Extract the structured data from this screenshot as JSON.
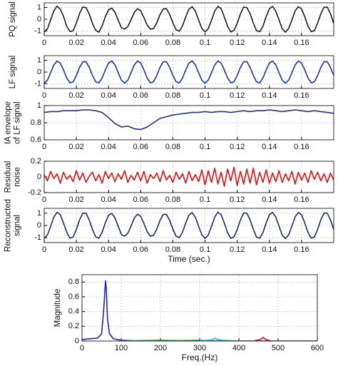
{
  "chart_data": [
    {
      "type": "line",
      "ylabel": "PQ signal",
      "xlim": [
        0,
        0.18
      ],
      "ylim": [
        -1.4,
        1.4
      ],
      "xticks": [
        0,
        0.02,
        0.04,
        0.06,
        0.08,
        0.1,
        0.12,
        0.14,
        0.16
      ],
      "yticks": [
        -1,
        0,
        1
      ],
      "grid": true,
      "x": [
        0,
        0.002,
        0.004,
        0.006,
        0.008,
        0.01,
        0.012,
        0.014,
        0.016,
        0.018,
        0.02,
        0.022,
        0.024,
        0.026,
        0.028,
        0.03,
        0.032,
        0.034,
        0.036,
        0.038,
        0.04,
        0.042,
        0.044,
        0.046,
        0.048,
        0.05,
        0.052,
        0.054,
        0.056,
        0.058,
        0.06,
        0.062,
        0.064,
        0.066,
        0.068,
        0.07,
        0.072,
        0.074,
        0.076,
        0.078,
        0.08,
        0.082,
        0.084,
        0.086,
        0.088,
        0.09,
        0.092,
        0.094,
        0.096,
        0.098,
        0.1,
        0.102,
        0.104,
        0.106,
        0.108,
        0.11,
        0.112,
        0.114,
        0.116,
        0.118,
        0.12,
        0.122,
        0.124,
        0.126,
        0.128,
        0.13,
        0.132,
        0.134,
        0.136,
        0.138,
        0.14,
        0.142,
        0.144,
        0.146,
        0.148,
        0.15,
        0.152,
        0.154,
        0.156,
        0.158,
        0.16,
        0.162,
        0.164,
        0.166,
        0.168,
        0.17,
        0.172,
        0.174,
        0.176,
        0.178,
        0.18
      ],
      "series": [
        {
          "color": "#1a1a1a",
          "values": [
            -1.1,
            -0.82,
            -0.05,
            0.72,
            1.12,
            0.86,
            0.24,
            -0.6,
            -1.05,
            -0.98,
            -0.31,
            0.49,
            1.05,
            0.99,
            0.45,
            -0.36,
            -0.94,
            -1.1,
            -0.57,
            0.23,
            0.8,
            0.95,
            0.6,
            -0.08,
            -0.72,
            -0.85,
            -0.62,
            -0.04,
            0.58,
            0.9,
            0.72,
            0.15,
            -0.5,
            -0.85,
            -0.8,
            -0.3,
            0.4,
            0.88,
            0.9,
            0.42,
            -0.3,
            -0.9,
            -1.02,
            -0.55,
            0.2,
            0.86,
            1.08,
            0.68,
            -0.06,
            -0.78,
            -1.08,
            -0.8,
            -0.09,
            0.69,
            1.1,
            0.9,
            0.19,
            -0.6,
            -1.08,
            -0.95,
            -0.35,
            0.46,
            1.04,
            1.0,
            0.48,
            -0.32,
            -0.97,
            -1.06,
            -0.6,
            0.22,
            0.9,
            1.1,
            0.69,
            -0.05,
            -0.82,
            -1.1,
            -0.78,
            -0.07,
            0.71,
            1.08,
            0.88,
            0.22,
            -0.58,
            -1.06,
            -0.97,
            -0.33,
            0.48,
            1.03,
            1.03,
            0.46,
            -0.35
          ]
        }
      ]
    },
    {
      "type": "line",
      "ylabel": "LF signal",
      "xlim": [
        0,
        0.18
      ],
      "ylim": [
        -1.4,
        1.4
      ],
      "xticks": [
        0,
        0.02,
        0.04,
        0.06,
        0.08,
        0.1,
        0.12,
        0.14,
        0.16
      ],
      "yticks": [
        -1,
        0,
        1
      ],
      "grid": true,
      "x": [
        0,
        0.002,
        0.004,
        0.006,
        0.008,
        0.01,
        0.012,
        0.014,
        0.016,
        0.018,
        0.02,
        0.022,
        0.024,
        0.026,
        0.028,
        0.03,
        0.032,
        0.034,
        0.036,
        0.038,
        0.04,
        0.042,
        0.044,
        0.046,
        0.048,
        0.05,
        0.052,
        0.054,
        0.056,
        0.058,
        0.06,
        0.062,
        0.064,
        0.066,
        0.068,
        0.07,
        0.072,
        0.074,
        0.076,
        0.078,
        0.08,
        0.082,
        0.084,
        0.086,
        0.088,
        0.09,
        0.092,
        0.094,
        0.096,
        0.098,
        0.1,
        0.102,
        0.104,
        0.106,
        0.108,
        0.11,
        0.112,
        0.114,
        0.116,
        0.118,
        0.12,
        0.122,
        0.124,
        0.126,
        0.128,
        0.13,
        0.132,
        0.134,
        0.136,
        0.138,
        0.14,
        0.142,
        0.144,
        0.146,
        0.148,
        0.15,
        0.152,
        0.154,
        0.156,
        0.158,
        0.16,
        0.162,
        0.164,
        0.166,
        0.168,
        0.17,
        0.172,
        0.174,
        0.176,
        0.178,
        0.18
      ],
      "series": [
        {
          "color": "#1f2fb8",
          "values": [
            -0.95,
            -0.69,
            -0.06,
            0.61,
            0.94,
            0.77,
            0.18,
            -0.51,
            -0.92,
            -0.83,
            -0.29,
            0.4,
            0.88,
            0.88,
            0.4,
            -0.29,
            -0.83,
            -0.92,
            -0.51,
            0.18,
            0.77,
            0.94,
            0.61,
            -0.06,
            -0.69,
            -0.95,
            -0.69,
            -0.06,
            0.61,
            0.94,
            0.77,
            0.18,
            -0.51,
            -0.92,
            -0.83,
            -0.29,
            0.4,
            0.88,
            0.88,
            0.4,
            -0.29,
            -0.83,
            -0.92,
            -0.51,
            0.18,
            0.77,
            0.94,
            0.61,
            -0.06,
            -0.69,
            -0.95,
            -0.69,
            -0.06,
            0.61,
            0.94,
            0.77,
            0.18,
            -0.51,
            -0.92,
            -0.83,
            -0.29,
            0.4,
            0.88,
            0.88,
            0.4,
            -0.29,
            -0.83,
            -0.92,
            -0.51,
            0.18,
            0.77,
            0.94,
            0.61,
            -0.06,
            -0.69,
            -0.95,
            -0.69,
            -0.06,
            0.61,
            0.94,
            0.77,
            0.18,
            -0.51,
            -0.92,
            -0.83,
            -0.29,
            0.4,
            0.88,
            0.88,
            0.4,
            -0.29
          ]
        }
      ]
    },
    {
      "type": "line",
      "ylabel": [
        "IA envelope",
        "of LF signal"
      ],
      "xlim": [
        0,
        0.18
      ],
      "ylim": [
        0.6,
        1.0
      ],
      "xticks": [
        0,
        0.02,
        0.04,
        0.06,
        0.08,
        0.1,
        0.12,
        0.14,
        0.16
      ],
      "yticks": [
        0.6,
        0.8,
        1
      ],
      "grid": true,
      "x": [
        0,
        0.004,
        0.008,
        0.012,
        0.016,
        0.02,
        0.024,
        0.028,
        0.032,
        0.036,
        0.04,
        0.044,
        0.048,
        0.052,
        0.056,
        0.06,
        0.064,
        0.068,
        0.072,
        0.076,
        0.08,
        0.084,
        0.088,
        0.092,
        0.096,
        0.1,
        0.104,
        0.108,
        0.112,
        0.116,
        0.12,
        0.124,
        0.128,
        0.132,
        0.136,
        0.14,
        0.144,
        0.148,
        0.152,
        0.156,
        0.16,
        0.164,
        0.168,
        0.172,
        0.176,
        0.18
      ],
      "series": [
        {
          "color": "#1f2f8f",
          "values": [
            0.92,
            0.93,
            0.93,
            0.94,
            0.94,
            0.94,
            0.95,
            0.95,
            0.94,
            0.92,
            0.86,
            0.79,
            0.75,
            0.76,
            0.73,
            0.72,
            0.75,
            0.8,
            0.85,
            0.87,
            0.89,
            0.9,
            0.91,
            0.92,
            0.92,
            0.93,
            0.92,
            0.93,
            0.93,
            0.92,
            0.93,
            0.94,
            0.93,
            0.94,
            0.94,
            0.95,
            0.94,
            0.93,
            0.94,
            0.95,
            0.94,
            0.93,
            0.94,
            0.93,
            0.92,
            0.91
          ]
        }
      ]
    },
    {
      "type": "line",
      "ylabel": [
        "Residual",
        "noise"
      ],
      "xlim": [
        0,
        0.18
      ],
      "ylim": [
        -0.2,
        0.2
      ],
      "xticks": [
        0,
        0.02,
        0.04,
        0.06,
        0.08,
        0.1,
        0.12,
        0.14,
        0.16
      ],
      "yticks": [
        -0.2,
        0,
        0.2
      ],
      "grid": true,
      "x": [
        0,
        0.002,
        0.004,
        0.006,
        0.008,
        0.01,
        0.012,
        0.014,
        0.016,
        0.018,
        0.02,
        0.022,
        0.024,
        0.026,
        0.028,
        0.03,
        0.032,
        0.034,
        0.036,
        0.038,
        0.04,
        0.042,
        0.044,
        0.046,
        0.048,
        0.05,
        0.052,
        0.054,
        0.056,
        0.058,
        0.06,
        0.062,
        0.064,
        0.066,
        0.068,
        0.07,
        0.072,
        0.074,
        0.076,
        0.078,
        0.08,
        0.082,
        0.084,
        0.086,
        0.088,
        0.09,
        0.092,
        0.094,
        0.096,
        0.098,
        0.1,
        0.102,
        0.104,
        0.106,
        0.108,
        0.11,
        0.112,
        0.114,
        0.116,
        0.118,
        0.12,
        0.122,
        0.124,
        0.126,
        0.128,
        0.13,
        0.132,
        0.134,
        0.136,
        0.138,
        0.14,
        0.142,
        0.144,
        0.146,
        0.148,
        0.15,
        0.152,
        0.154,
        0.156,
        0.158,
        0.16,
        0.162,
        0.164,
        0.166,
        0.168,
        0.17,
        0.172,
        0.174,
        0.176,
        0.178,
        0.18
      ],
      "series": [
        {
          "color": "#e01010",
          "values": [
            0.03,
            -0.05,
            0.07,
            -0.02,
            0.04,
            -0.08,
            0.06,
            -0.03,
            0.02,
            -0.06,
            0.08,
            -0.04,
            0.05,
            -0.07,
            0.01,
            0.06,
            -0.05,
            0.03,
            -0.08,
            0.07,
            -0.02,
            0.05,
            -0.06,
            0.04,
            -0.03,
            0.08,
            -0.07,
            0.02,
            -0.04,
            0.06,
            -0.05,
            0.07,
            -0.08,
            0.03,
            -0.02,
            0.05,
            -0.06,
            0.08,
            -0.04,
            0.02,
            -0.07,
            0.06,
            -0.03,
            0.04,
            -0.08,
            0.07,
            -0.05,
            0.03,
            -0.06,
            0.09,
            -0.1,
            0.08,
            -0.07,
            0.11,
            -0.09,
            0.06,
            -0.12,
            0.1,
            -0.05,
            0.12,
            -0.11,
            0.07,
            -0.09,
            0.1,
            -0.08,
            0.11,
            -0.1,
            0.06,
            -0.07,
            0.09,
            -0.08,
            0.05,
            -0.06,
            0.08,
            -0.07,
            0.04,
            -0.05,
            0.07,
            -0.09,
            0.06,
            -0.04,
            0.05,
            -0.07,
            0.08,
            -0.03,
            0.06,
            -0.05,
            0.04,
            -0.07,
            0.05,
            -0.04
          ]
        }
      ]
    },
    {
      "type": "line",
      "ylabel": [
        "Reconstructed",
        "signal"
      ],
      "xlabel": "Time (sec.)",
      "xlim": [
        0,
        0.18
      ],
      "ylim": [
        -1.4,
        1.4
      ],
      "xticks": [
        0,
        0.02,
        0.04,
        0.06,
        0.08,
        0.1,
        0.12,
        0.14,
        0.16
      ],
      "yticks": [
        -1,
        0,
        1
      ],
      "grid": true,
      "x": [
        0,
        0.002,
        0.004,
        0.006,
        0.008,
        0.01,
        0.012,
        0.014,
        0.016,
        0.018,
        0.02,
        0.022,
        0.024,
        0.026,
        0.028,
        0.03,
        0.032,
        0.034,
        0.036,
        0.038,
        0.04,
        0.042,
        0.044,
        0.046,
        0.048,
        0.05,
        0.052,
        0.054,
        0.056,
        0.058,
        0.06,
        0.062,
        0.064,
        0.066,
        0.068,
        0.07,
        0.072,
        0.074,
        0.076,
        0.078,
        0.08,
        0.082,
        0.084,
        0.086,
        0.088,
        0.09,
        0.092,
        0.094,
        0.096,
        0.098,
        0.1,
        0.102,
        0.104,
        0.106,
        0.108,
        0.11,
        0.112,
        0.114,
        0.116,
        0.118,
        0.12,
        0.122,
        0.124,
        0.126,
        0.128,
        0.13,
        0.132,
        0.134,
        0.136,
        0.138,
        0.14,
        0.142,
        0.144,
        0.146,
        0.148,
        0.15,
        0.152,
        0.154,
        0.156,
        0.158,
        0.16,
        0.162,
        0.164,
        0.166,
        0.168,
        0.17,
        0.172,
        0.174,
        0.176,
        0.178,
        0.18
      ],
      "series": [
        {
          "color": "#1a2a6c",
          "values": [
            -1.05,
            -0.78,
            -0.06,
            0.68,
            1.08,
            0.88,
            0.2,
            -0.56,
            -1.04,
            -0.94,
            -0.32,
            0.46,
            1.0,
            1.0,
            0.44,
            -0.33,
            -0.93,
            -1.05,
            -0.56,
            0.2,
            0.84,
            0.98,
            0.62,
            -0.07,
            -0.74,
            -0.88,
            -0.64,
            -0.05,
            0.6,
            0.92,
            0.74,
            0.16,
            -0.5,
            -0.87,
            -0.82,
            -0.3,
            0.42,
            0.9,
            0.9,
            0.42,
            -0.3,
            -0.88,
            -1.0,
            -0.54,
            0.2,
            0.85,
            1.05,
            0.66,
            -0.06,
            -0.76,
            -1.06,
            -0.78,
            -0.07,
            0.68,
            1.08,
            0.88,
            0.19,
            -0.58,
            -1.05,
            -0.94,
            -0.34,
            0.45,
            1.02,
            1.0,
            0.46,
            -0.32,
            -0.95,
            -1.04,
            -0.58,
            0.21,
            0.88,
            1.07,
            0.68,
            -0.05,
            -0.8,
            -1.07,
            -0.77,
            -0.06,
            0.7,
            1.06,
            0.87,
            0.21,
            -0.57,
            -1.04,
            -0.95,
            -0.32,
            0.47,
            1.01,
            1.01,
            0.45,
            -0.34
          ]
        }
      ]
    },
    {
      "type": "line",
      "ylabel": "Magnitude",
      "xlabel": "Freq.(Hz)",
      "xlim": [
        0,
        600
      ],
      "ylim": [
        0,
        0.9
      ],
      "xticks": [
        0,
        100,
        200,
        300,
        400,
        500,
        600
      ],
      "yticks": [
        0,
        0.2,
        0.4,
        0.6,
        0.8
      ],
      "grid": true,
      "series": [
        {
          "color": "#1f1fd0",
          "x": [
            0,
            20,
            40,
            50,
            55,
            60,
            62,
            65,
            70,
            80,
            100,
            150,
            600
          ],
          "values": [
            0.02,
            0.03,
            0.04,
            0.1,
            0.4,
            0.82,
            0.7,
            0.3,
            0.1,
            0.03,
            0.01,
            0,
            0
          ]
        },
        {
          "color": "#2e9e2e",
          "x": [
            100,
            150,
            200,
            250,
            300,
            320
          ],
          "values": [
            0,
            0.005,
            0.01,
            0.005,
            0.01,
            0.005
          ]
        },
        {
          "color": "#20c0c0",
          "x": [
            300,
            320,
            335,
            340,
            345,
            360,
            380
          ],
          "values": [
            0.005,
            0.01,
            0.02,
            0.04,
            0.02,
            0.01,
            0.005
          ]
        },
        {
          "color": "#e01010",
          "x": [
            440,
            455,
            462,
            468,
            480
          ],
          "values": [
            0.005,
            0.02,
            0.05,
            0.02,
            0.005
          ]
        }
      ]
    }
  ]
}
